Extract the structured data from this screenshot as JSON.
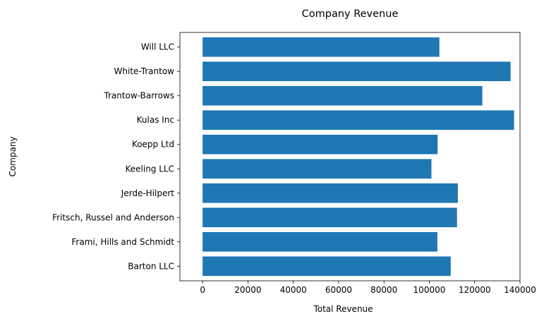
{
  "chart_data": {
    "type": "bar",
    "orientation": "horizontal",
    "title": "Company Revenue",
    "xlabel": "Total Revenue",
    "ylabel": "Company",
    "categories": [
      "Barton LLC",
      "Frami, Hills and Schmidt",
      "Fritsch, Russel and Anderson",
      "Jerde-Hilpert",
      "Keeling LLC",
      "Koepp Ltd",
      "Kulas Inc",
      "Trantow-Barrows",
      "White-Trantow",
      "Will LLC"
    ],
    "values": [
      109438,
      103569,
      112214,
      112591,
      100934,
      103660,
      137352,
      123381,
      135841,
      104437
    ],
    "xlim": [
      -10000,
      140000
    ],
    "xticks": [
      0,
      20000,
      40000,
      60000,
      80000,
      100000,
      120000,
      140000
    ],
    "grid": false,
    "colors": {
      "bar": "#1f77b4",
      "axis": "#000000"
    }
  }
}
